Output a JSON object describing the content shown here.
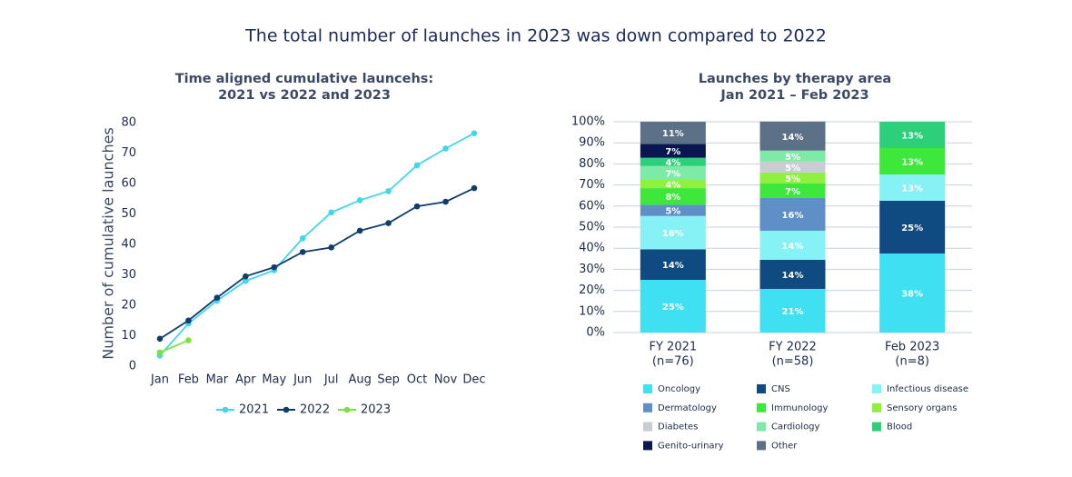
{
  "title": "The total number of launches in 2023 was down compared to 2022",
  "chart_data": [
    {
      "type": "line",
      "title_lines": [
        "Time aligned cumulative launcehs:",
        "2021 vs 2022 and 2023"
      ],
      "y_label": "Number of cumulative launches",
      "categories": [
        "Jan",
        "Feb",
        "Mar",
        "Apr",
        "May",
        "Jun",
        "Jul",
        "Aug",
        "Sep",
        "Oct",
        "Nov",
        "Dec"
      ],
      "series": [
        {
          "name": "2021",
          "color": "#3fd6ee",
          "values": [
            3.5,
            14,
            21.5,
            28,
            31.5,
            42,
            50.5,
            54.5,
            57.5,
            66,
            71.5,
            76.5
          ]
        },
        {
          "name": "2022",
          "color": "#0f3d6e",
          "values": [
            9,
            15,
            22.5,
            29.5,
            32.5,
            37.5,
            39,
            44.5,
            47,
            52.5,
            54,
            58.5
          ]
        },
        {
          "name": "2023",
          "color": "#7be43a",
          "values": [
            4.5,
            8.5,
            null,
            null,
            null,
            null,
            null,
            null,
            null,
            null,
            null,
            null
          ]
        }
      ],
      "ylim": [
        0,
        80
      ],
      "yticks": [
        0,
        10,
        20,
        30,
        40,
        50,
        60,
        70,
        80
      ],
      "grid": false,
      "legend": "bottom"
    },
    {
      "type": "stacked_bar",
      "title_lines": [
        "Launches by therapy area",
        "Jan 2021 –  Feb 2023"
      ],
      "categories": [
        "FY 2021",
        "FY 2022",
        "Feb 2023"
      ],
      "category_counts": [
        "(n=76)",
        "(n=58)",
        "(n=8)"
      ],
      "series": [
        {
          "name": "Oncology",
          "color": "#3fe0f2",
          "values": [
            25.0,
            20.7,
            37.5
          ],
          "value_labels": [
            "25%",
            "21%",
            "38%"
          ]
        },
        {
          "name": "CNS",
          "color": "#0f4a80",
          "values": [
            14.5,
            13.8,
            25
          ],
          "value_labels": [
            "14%",
            "14%",
            "25%"
          ]
        },
        {
          "name": "Infectious disease",
          "color": "#86f2f6",
          "values": [
            15.8,
            13.8,
            12.5
          ],
          "value_labels": [
            "16%",
            "14%",
            "13%"
          ]
        },
        {
          "name": "Dermatology",
          "color": "#5e8fc6",
          "values": [
            5.3,
            15.5,
            0
          ],
          "value_labels": [
            "5%",
            "16%",
            null
          ]
        },
        {
          "name": "Immunology",
          "color": "#3de83a",
          "values": [
            7.9,
            6.9,
            12.5
          ],
          "value_labels": [
            "8%",
            "7%",
            "13%"
          ]
        },
        {
          "name": "Sensory organs",
          "color": "#8ff03f",
          "values": [
            3.9,
            5.2,
            0
          ],
          "value_labels": [
            "4%",
            "5%",
            null
          ]
        },
        {
          "name": "Diabetes",
          "color": "#c9cdd2",
          "values": [
            0,
            5.2,
            0
          ],
          "value_labels": [
            null,
            "5%",
            null
          ]
        },
        {
          "name": "Cardiology",
          "color": "#7eeaa7",
          "values": [
            6.6,
            5.2,
            0
          ],
          "value_labels": [
            "7%",
            "5%",
            null
          ]
        },
        {
          "name": "Blood",
          "color": "#2dcf7a",
          "values": [
            3.9,
            0,
            12.5
          ],
          "value_labels": [
            "4%",
            null,
            "13%"
          ]
        },
        {
          "name": "Genito-urinary",
          "color": "#0a1650",
          "values": [
            6.6,
            0,
            0
          ],
          "value_labels": [
            "7%",
            null,
            null
          ]
        },
        {
          "name": "Other",
          "color": "#5c7188",
          "values": [
            10.5,
            13.8,
            0
          ],
          "value_labels": [
            "11%",
            "14%",
            null
          ]
        }
      ],
      "ylim": [
        0,
        100
      ],
      "yticks": [
        {
          "value": 0,
          "label": "0%"
        },
        {
          "value": 10,
          "label": "10%"
        },
        {
          "value": 20,
          "label": "20%"
        },
        {
          "value": 30,
          "label": "30%"
        },
        {
          "value": 40,
          "label": "40%"
        },
        {
          "value": 50,
          "label": "50%"
        },
        {
          "value": 60,
          "label": "60%"
        },
        {
          "value": 70,
          "label": "70%"
        },
        {
          "value": 80,
          "label": "80%"
        },
        {
          "value": 90,
          "label": "90%"
        },
        {
          "value": 100,
          "label": "100%"
        }
      ],
      "grid": true,
      "legend": "bottom"
    }
  ]
}
